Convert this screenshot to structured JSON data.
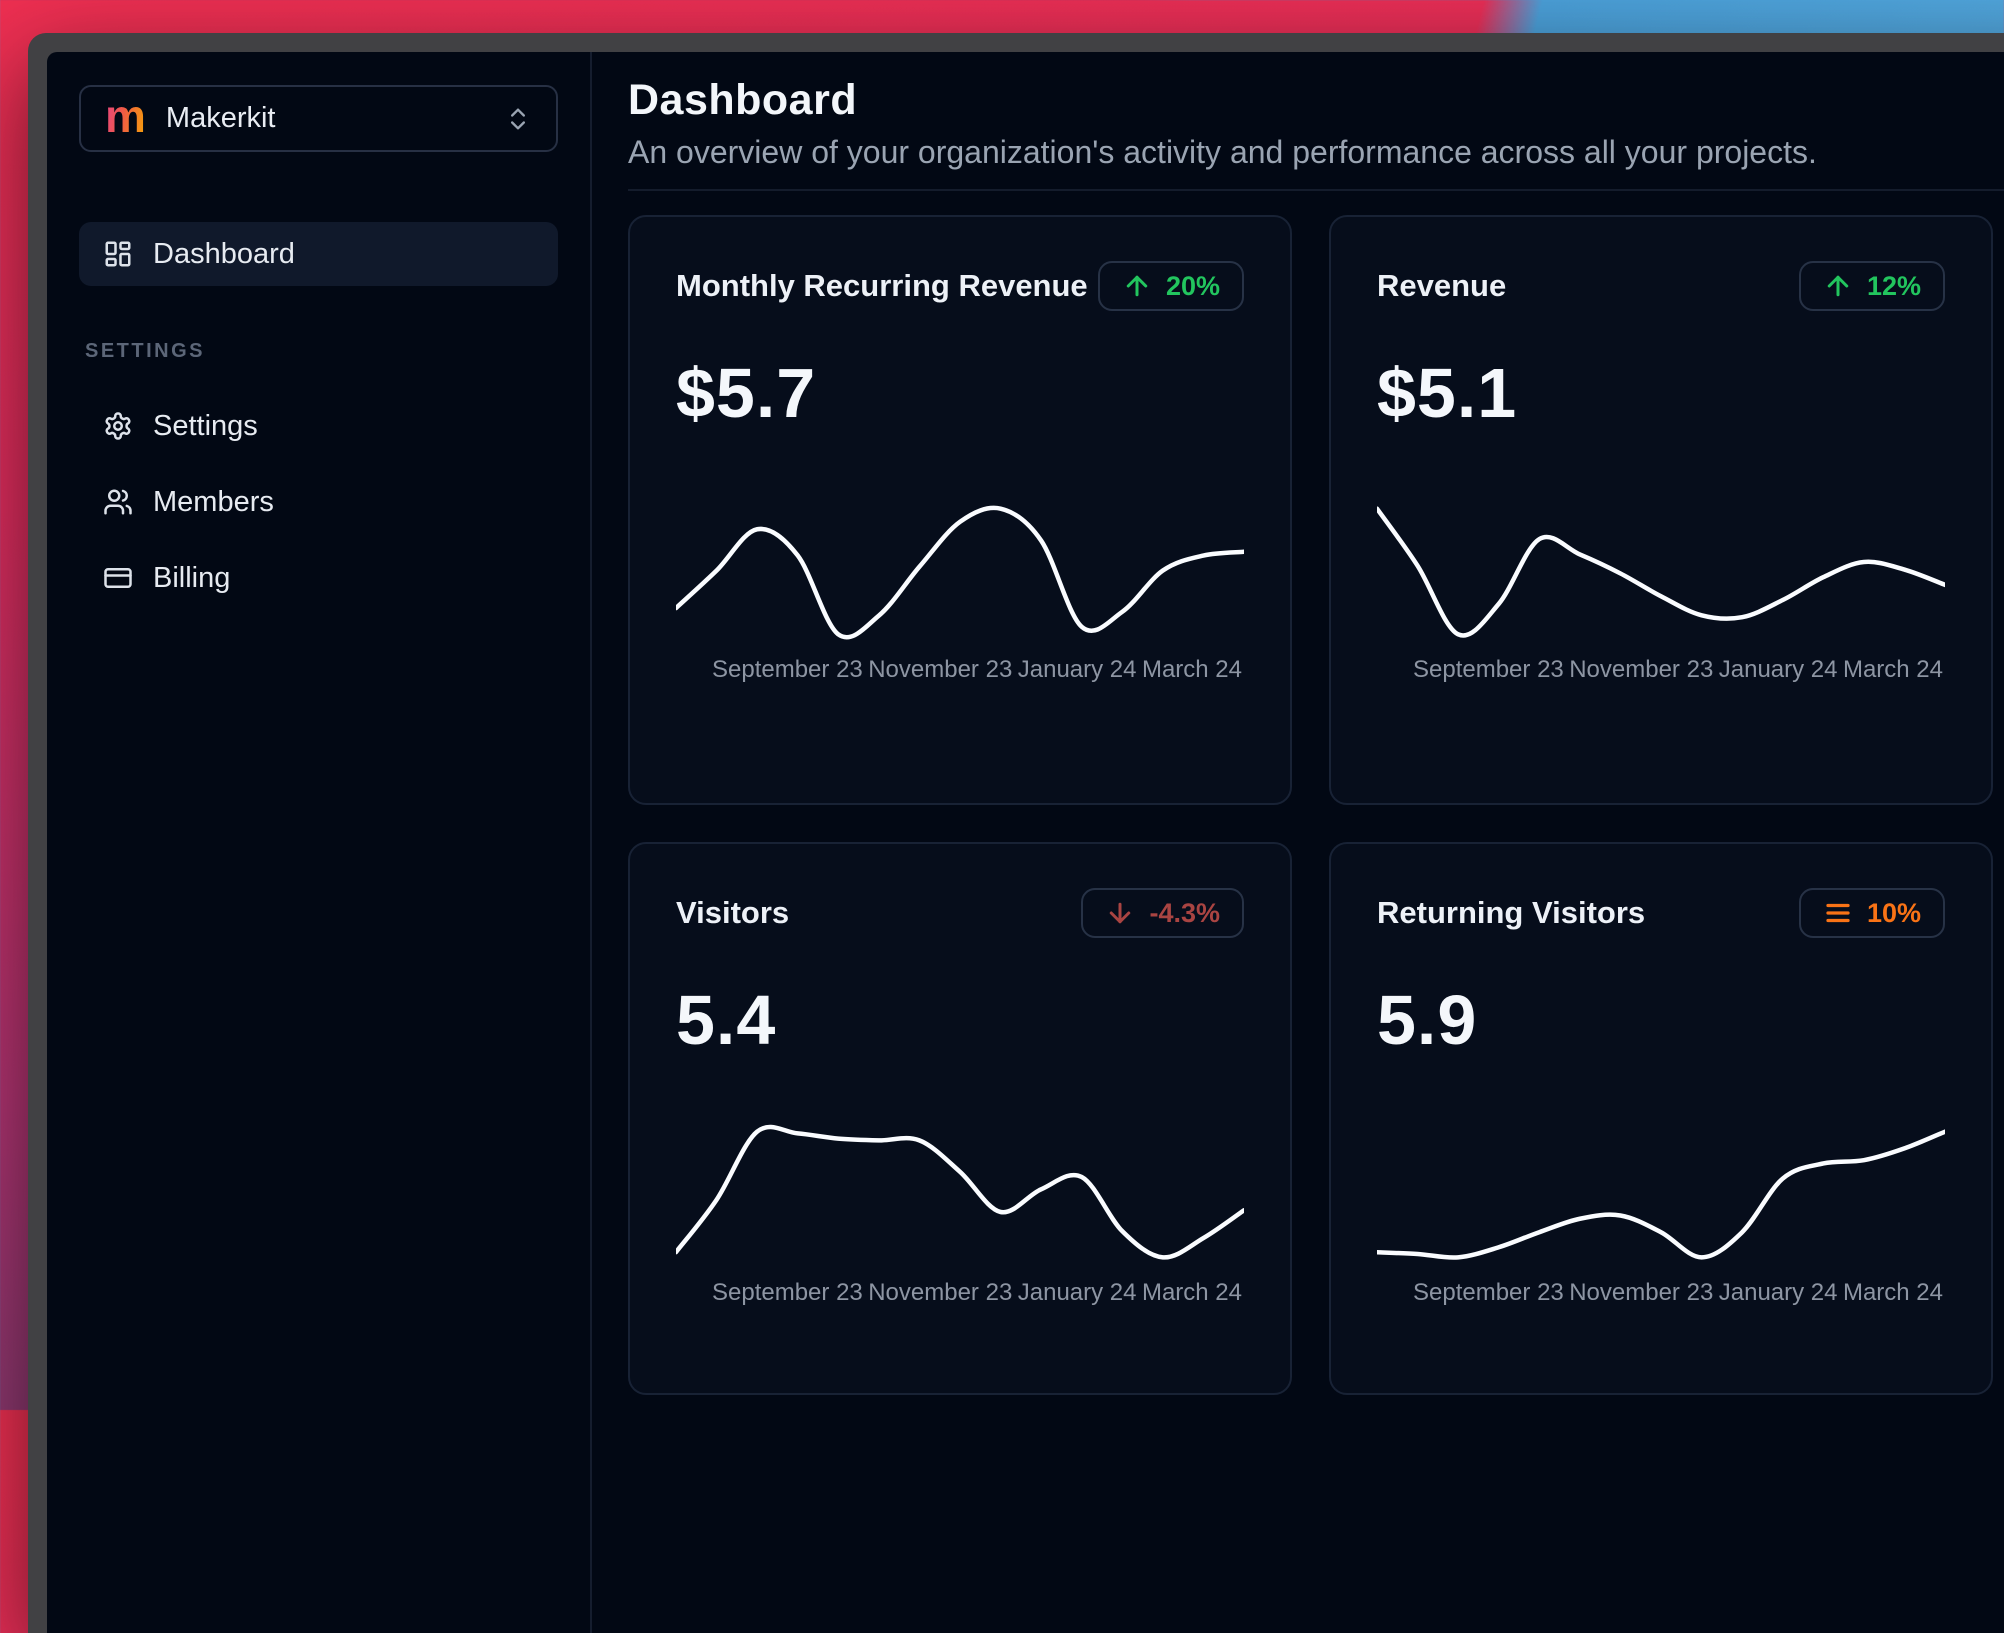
{
  "window": {
    "frame_color": "#414144"
  },
  "sidebar": {
    "workspace": {
      "logo_letter": "m",
      "name": "Makerkit"
    },
    "nav": [
      {
        "label": "Dashboard",
        "icon": "layout-dashboard-icon",
        "active": true
      }
    ],
    "sections": [
      {
        "heading": "SETTINGS",
        "items": [
          {
            "label": "Settings",
            "icon": "gear-icon"
          },
          {
            "label": "Members",
            "icon": "users-icon"
          },
          {
            "label": "Billing",
            "icon": "credit-card-icon"
          }
        ]
      }
    ]
  },
  "header": {
    "title": "Dashboard",
    "subtitle": "An overview of your organization's activity and performance across all your projects."
  },
  "cards": [
    {
      "title": "Monthly Recurring Revenue",
      "value": "$5.7",
      "trend": {
        "direction": "up",
        "label": "20%",
        "color": "#22c55e"
      },
      "chart": 0
    },
    {
      "title": "Revenue",
      "value": "$5.1",
      "trend": {
        "direction": "up",
        "label": "12%",
        "color": "#22c55e"
      },
      "chart": 1
    },
    {
      "title": "Visitors",
      "value": "5.4",
      "trend": {
        "direction": "down",
        "label": "-4.3%",
        "color": "#a94442"
      },
      "chart": 2
    },
    {
      "title": "Returning Visitors",
      "value": "5.9",
      "trend": {
        "direction": "stale",
        "label": "10%",
        "color": "#f97316"
      },
      "chart": 3
    }
  ],
  "chart_data": [
    {
      "type": "line",
      "title": "Monthly Recurring Revenue sparkline",
      "tick_labels": [
        "September 23",
        "November 23",
        "January 24",
        "March 24"
      ],
      "values": [
        2.6,
        4.6,
        6.8,
        5.4,
        1.2,
        2.2,
        4.8,
        7.2,
        7.9,
        6.2,
        1.6,
        2.4,
        4.6,
        5.4,
        5.6
      ],
      "line_color": "#ffffff",
      "grid": false,
      "legend": false
    },
    {
      "type": "line",
      "title": "Revenue sparkline",
      "tick_labels": [
        "September 23",
        "November 23",
        "January 24",
        "March 24"
      ],
      "values": [
        8.6,
        5.6,
        2.0,
        3.6,
        7.0,
        6.2,
        5.2,
        4.0,
        3.0,
        2.9,
        3.8,
        5.0,
        5.8,
        5.4,
        4.6
      ],
      "line_color": "#ffffff",
      "grid": false,
      "legend": false
    },
    {
      "type": "line",
      "title": "Visitors sparkline",
      "tick_labels": [
        "September 23",
        "November 23",
        "January 24",
        "March 24"
      ],
      "values": [
        1.6,
        4.6,
        8.5,
        8.4,
        8.1,
        8.0,
        8.0,
        6.2,
        3.9,
        5.2,
        5.9,
        2.8,
        1.3,
        2.4,
        4.0
      ],
      "line_color": "#ffffff",
      "grid": false,
      "legend": false
    },
    {
      "type": "line",
      "title": "Returning Visitors sparkline",
      "tick_labels": [
        "September 23",
        "November 23",
        "January 24",
        "March 24"
      ],
      "values": [
        1.4,
        1.3,
        1.1,
        1.7,
        2.6,
        3.4,
        3.6,
        2.6,
        1.1,
        2.6,
        5.8,
        6.7,
        6.9,
        7.6,
        8.6
      ],
      "line_color": "#ffffff",
      "grid": false,
      "legend": false
    }
  ],
  "colors": {
    "page_background": "#020814",
    "card_background": "#060d1b",
    "card_border": "#182235",
    "positive": "#22c55e",
    "negative": "#a94442",
    "neutral_trend": "#f97316",
    "text_primary": "#f3f6fa",
    "text_muted": "#9aa4b2"
  }
}
